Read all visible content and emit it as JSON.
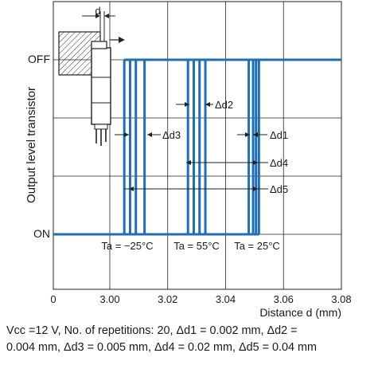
{
  "chart_data": {
    "type": "line",
    "ylabel": "Output level transistor",
    "xlabel": "Distance d (mm)",
    "y_states": [
      "OFF",
      "ON"
    ],
    "xlim": [
      0,
      3.08
    ],
    "x_tick_labels": [
      "0",
      "3.00",
      "3.02",
      "3.04",
      "3.06",
      "3.08"
    ],
    "x_ticks": [
      0,
      3.0,
      3.02,
      3.04,
      3.06,
      3.08
    ],
    "grid": true,
    "line_color": "#1f6fb8",
    "series": [
      {
        "name": "Ta = −25°C",
        "transitions": [
          3.005,
          3.007,
          3.009,
          3.012
        ]
      },
      {
        "name": "Ta = 55°C",
        "transitions": [
          3.027,
          3.029,
          3.031,
          3.033
        ]
      },
      {
        "name": "Ta = 25°C",
        "transitions": [
          3.048,
          3.0495,
          3.0505,
          3.0515
        ]
      }
    ],
    "annotations": {
      "d": "d",
      "delta_d1": "Δd1",
      "delta_d2": "Δd2",
      "delta_d3": "Δd3",
      "delta_d4": "Δd4",
      "delta_d5": "Δd5"
    }
  },
  "caption": {
    "line1": "Vcc =12 V, No. of repetitions: 20, Δd1 = 0.002 mm, Δd2 =",
    "line2": "0.004 mm, Δd3 = 0.005 mm, Δd4 = 0.02 mm, Δd5 = 0.04 mm"
  }
}
